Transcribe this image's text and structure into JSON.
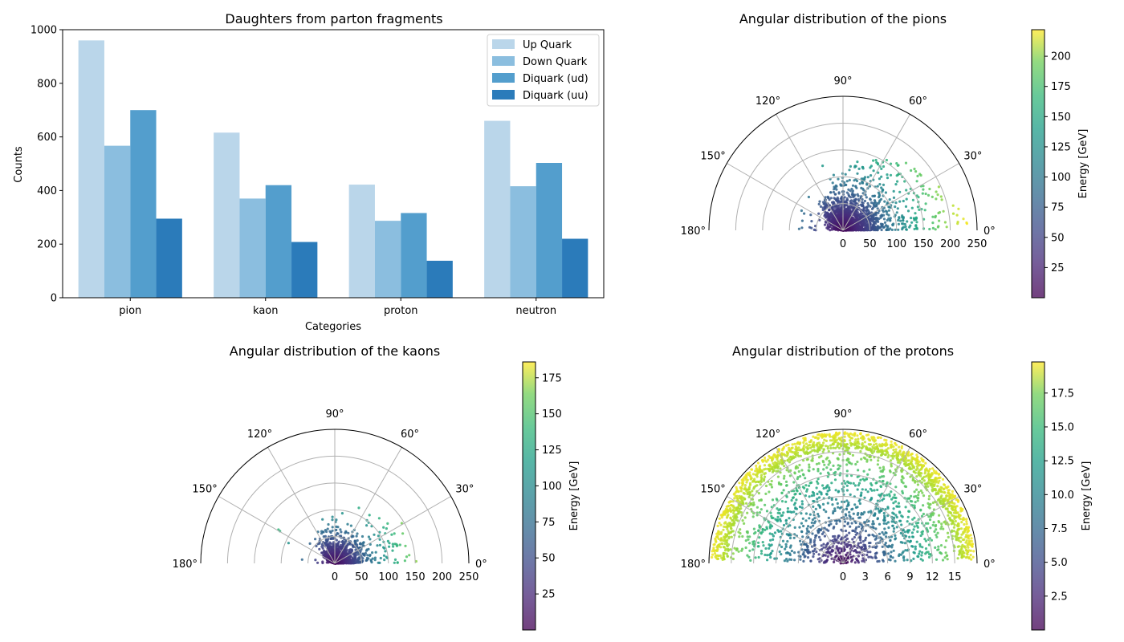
{
  "colorbar_label": "Energy [GeV]",
  "chart_data": [
    {
      "type": "bar",
      "title": "Daughters from parton fragments",
      "xlabel": "Categories",
      "ylabel": "Counts",
      "categories": [
        "pion",
        "kaon",
        "proton",
        "neutron"
      ],
      "ylim": [
        0,
        1000
      ],
      "yticks": [
        0,
        200,
        400,
        600,
        800,
        1000
      ],
      "legend_position": "top-right",
      "series": [
        {
          "name": "Up Quark",
          "color": "#bad6ea",
          "values": [
            960,
            616,
            422,
            660
          ]
        },
        {
          "name": "Down Quark",
          "color": "#8bbedf",
          "values": [
            567,
            370,
            287,
            416
          ]
        },
        {
          "name": "Diquark (ud)",
          "color": "#539ecd",
          "values": [
            700,
            420,
            316,
            503
          ]
        },
        {
          "name": "Diquark (uu)",
          "color": "#2b7bba",
          "values": [
            295,
            208,
            138,
            220
          ]
        }
      ]
    },
    {
      "type": "scatter",
      "projection": "polar-half",
      "title": "Angular distribution of the pions",
      "angle_ticks": [
        "0°",
        "30°",
        "60°",
        "90°",
        "120°",
        "150°",
        "180°"
      ],
      "rlim": [
        0,
        250
      ],
      "rticks": [
        0,
        50,
        100,
        150,
        200,
        250
      ],
      "clim": [
        0,
        222
      ],
      "cticks": [
        25,
        50,
        75,
        100,
        125,
        150,
        175,
        200
      ],
      "colormap": "viridis"
    },
    {
      "type": "scatter",
      "projection": "polar-half",
      "title": "Angular distribution of the kaons",
      "angle_ticks": [
        "0°",
        "30°",
        "60°",
        "90°",
        "120°",
        "150°",
        "180°"
      ],
      "rlim": [
        0,
        250
      ],
      "rticks": [
        0,
        50,
        100,
        150,
        200,
        250
      ],
      "clim": [
        0,
        186
      ],
      "cticks": [
        25,
        50,
        75,
        100,
        125,
        150,
        175
      ],
      "colormap": "viridis"
    },
    {
      "type": "scatter",
      "projection": "polar-half",
      "title": "Angular distribution of the protons",
      "angle_ticks": [
        "0°",
        "30°",
        "60°",
        "90°",
        "120°",
        "150°",
        "180°"
      ],
      "rlim": [
        0,
        18
      ],
      "rticks": [
        0,
        3,
        6,
        9,
        12,
        15
      ],
      "clim": [
        0,
        19.8
      ],
      "cticks": [
        "2.5",
        "5.0",
        "7.5",
        "10.0",
        "12.5",
        "15.0",
        "17.5"
      ],
      "colormap": "viridis"
    }
  ]
}
